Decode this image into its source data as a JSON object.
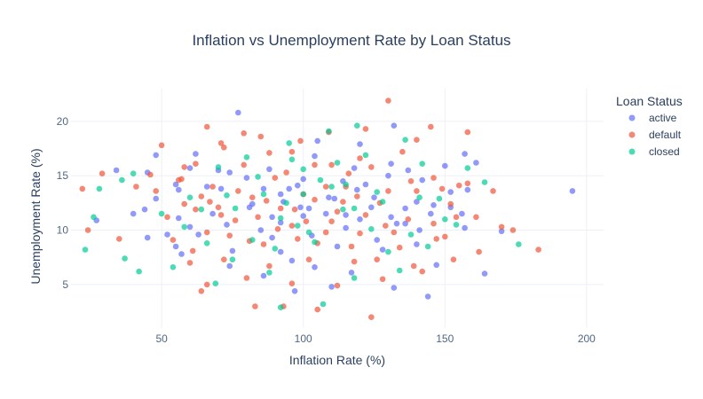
{
  "chart_data": {
    "type": "scatter",
    "title": "Inflation vs Unemployment Rate by Loan Status",
    "xlabel": "Inflation Rate (%)",
    "ylabel": "Unemployment Rate (%)",
    "xlim": [
      18,
      206
    ],
    "ylim": [
      1,
      23
    ],
    "x_ticks": [
      50,
      100,
      150,
      200
    ],
    "y_ticks": [
      5,
      10,
      15,
      20
    ],
    "grid": true,
    "legend": {
      "title": "Loan Status",
      "position": "top-right"
    },
    "series": [
      {
        "name": "active",
        "color": "#636efa",
        "points": [
          [
            77,
            20.8
          ],
          [
            34,
            15.5
          ],
          [
            48,
            16.9
          ],
          [
            45,
            15.3
          ],
          [
            60,
            15.7
          ],
          [
            70,
            15.5
          ],
          [
            92,
            13.3
          ],
          [
            74,
            15.3
          ],
          [
            150,
            15.9
          ],
          [
            157,
            17.0
          ],
          [
            195,
            13.6
          ],
          [
            157,
            10.2
          ],
          [
            132,
            4.7
          ],
          [
            144,
            3.9
          ],
          [
            164,
            6.0
          ],
          [
            170,
            9.9
          ],
          [
            97,
            4.4
          ],
          [
            110,
            4.8
          ],
          [
            40,
            11.5
          ],
          [
            60,
            10.3
          ],
          [
            45,
            9.3
          ],
          [
            55,
            8.5
          ],
          [
            92,
            8.0
          ],
          [
            126,
            9.1
          ],
          [
            120,
            11.0
          ],
          [
            136,
            12.0
          ],
          [
            130,
            15.0
          ],
          [
            152,
            13.5
          ],
          [
            145,
            11.5
          ],
          [
            120,
            17.9
          ],
          [
            86,
            13.8
          ],
          [
            104,
            16.8
          ],
          [
            109,
            13.0
          ],
          [
            132,
            19.6
          ],
          [
            100,
            11.3
          ],
          [
            66,
            14.0
          ],
          [
            56,
            11.1
          ],
          [
            85,
            10.0
          ],
          [
            115,
            10.2
          ],
          [
            74,
            6.7
          ],
          [
            96,
            7.2
          ],
          [
            112,
            8.5
          ],
          [
            128,
            8.2
          ],
          [
            140,
            8.7
          ],
          [
            48,
            12.9
          ],
          [
            81,
            12.1
          ],
          [
            62,
            17.0
          ],
          [
            114,
            14.5
          ],
          [
            92,
            10.7
          ],
          [
            73,
            10.5
          ],
          [
            56,
            13.7
          ],
          [
            122,
            14.2
          ],
          [
            140,
            12.6
          ],
          [
            103,
            9.5
          ],
          [
            152,
            12.1
          ],
          [
            117,
            6.1
          ],
          [
            147,
            6.8
          ],
          [
            86,
            5.8
          ],
          [
            82,
            12.4
          ],
          [
            142,
            14.6
          ],
          [
            68,
            11.5
          ],
          [
            55,
            14.2
          ],
          [
            108,
            11.5
          ],
          [
            136,
            10.6
          ],
          [
            98,
            14.1
          ],
          [
            63,
            9.6
          ],
          [
            75,
            8.1
          ],
          [
            104,
            6.6
          ],
          [
            88,
            15.6
          ],
          [
            118,
            15.7
          ],
          [
            131,
            11.2
          ],
          [
            156,
            11.5
          ],
          [
            93,
            12.6
          ],
          [
            52,
            9.6
          ],
          [
            44,
            11.9
          ],
          [
            161,
            16.2
          ],
          [
            27,
            10.9
          ],
          [
            105,
            18.2
          ],
          [
            71,
            13.8
          ],
          [
            125,
            13.0
          ],
          [
            131,
            16.1
          ],
          [
            111,
            12.9
          ],
          [
            158,
            13.7
          ],
          [
            99,
            12.1
          ],
          [
            89,
            9.3
          ],
          [
            124,
            12.1
          ],
          [
            95,
            13.8
          ],
          [
            80,
            14.8
          ],
          [
            137,
            15.5
          ],
          [
            141,
            10.0
          ],
          [
            89,
            11.2
          ],
          [
            57,
            7.8
          ],
          [
            100,
            14.7
          ],
          [
            146,
            12.3
          ],
          [
            102,
            12.0
          ],
          [
            119,
            13.7
          ],
          [
            115,
            11.4
          ],
          [
            133,
            10.6
          ]
        ]
      },
      {
        "name": "default",
        "color": "#ef553b",
        "points": [
          [
            130,
            21.9
          ],
          [
            46,
            15.1
          ],
          [
            50,
            17.8
          ],
          [
            66,
            19.5
          ],
          [
            79,
            18.9
          ],
          [
            83,
            3.0
          ],
          [
            124,
            2.0
          ],
          [
            64,
            4.4
          ],
          [
            183,
            8.2
          ],
          [
            167,
            13.6
          ],
          [
            161,
            11.2
          ],
          [
            145,
            19.5
          ],
          [
            158,
            19.0
          ],
          [
            170,
            10.3
          ],
          [
            22,
            13.8
          ],
          [
            24,
            10.0
          ],
          [
            35,
            9.2
          ],
          [
            29,
            15.2
          ],
          [
            41,
            14.0
          ],
          [
            56,
            14.6
          ],
          [
            62,
            16.1
          ],
          [
            72,
            17.6
          ],
          [
            88,
            17.1
          ],
          [
            104,
            16.0
          ],
          [
            120,
            16.6
          ],
          [
            135,
            17.2
          ],
          [
            146,
            14.8
          ],
          [
            140,
            13.6
          ],
          [
            152,
            12.4
          ],
          [
            158,
            14.3
          ],
          [
            150,
            9.4
          ],
          [
            132,
            9.8
          ],
          [
            122,
            11.4
          ],
          [
            110,
            10.8
          ],
          [
            96,
            10.4
          ],
          [
            84,
            11.2
          ],
          [
            70,
            12.1
          ],
          [
            58,
            12.4
          ],
          [
            66,
            9.8
          ],
          [
            72,
            7.3
          ],
          [
            60,
            7.0
          ],
          [
            80,
            5.6
          ],
          [
            96,
            5.1
          ],
          [
            112,
            4.9
          ],
          [
            128,
            5.5
          ],
          [
            142,
            6.2
          ],
          [
            100,
            13.3
          ],
          [
            90,
            14.8
          ],
          [
            114,
            12.6
          ],
          [
            105,
            8.8
          ],
          [
            118,
            7.1
          ],
          [
            134,
            8.4
          ],
          [
            86,
            8.7
          ],
          [
            76,
            10.9
          ],
          [
            64,
            13.1
          ],
          [
            52,
            11.2
          ],
          [
            48,
            13.6
          ],
          [
            58,
            15.8
          ],
          [
            68,
            14.0
          ],
          [
            92,
            12.0
          ],
          [
            108,
            14.0
          ],
          [
            124,
            15.8
          ],
          [
            138,
            14.5
          ],
          [
            154,
            11.2
          ],
          [
            162,
            8.0
          ],
          [
            174,
            10.0
          ],
          [
            98,
            9.2
          ],
          [
            112,
            11.7
          ],
          [
            120,
            9.7
          ],
          [
            104,
            12.8
          ],
          [
            94,
            15.3
          ],
          [
            82,
            13.0
          ],
          [
            74,
            9.5
          ],
          [
            62,
            11.9
          ],
          [
            54,
            9.1
          ],
          [
            88,
            6.7
          ],
          [
            102,
            7.3
          ],
          [
            126,
            7.3
          ],
          [
            116,
            15.2
          ],
          [
            130,
            13.6
          ],
          [
            146,
            10.6
          ],
          [
            79,
            16.0
          ],
          [
            71,
            18.0
          ],
          [
            85,
            18.6
          ],
          [
            99,
            18.2
          ],
          [
            109,
            19.0
          ],
          [
            122,
            19.3
          ],
          [
            140,
            18.3
          ],
          [
            93,
            3.0
          ],
          [
            105,
            2.7
          ],
          [
            115,
            14.0
          ],
          [
            108,
            9.8
          ],
          [
            97,
            11.9
          ],
          [
            87,
            12.7
          ],
          [
            77,
            13.6
          ],
          [
            67,
            12.6
          ],
          [
            57,
            14.7
          ],
          [
            127,
            12.5
          ],
          [
            137,
            11.0
          ],
          [
            147,
            9.2
          ],
          [
            139,
            6.7
          ],
          [
            117,
            8.5
          ],
          [
            101,
            10.8
          ],
          [
            91,
            10.1
          ],
          [
            81,
            9.0
          ],
          [
            71,
            11.4
          ],
          [
            61,
            8.1
          ],
          [
            119,
            13.1
          ],
          [
            129,
            10.4
          ],
          [
            149,
            13.8
          ],
          [
            110,
            16.0
          ],
          [
            96,
            17.2
          ],
          [
            66,
            5.0
          ],
          [
            153,
            7.3
          ],
          [
            155,
            14.1
          ]
        ]
      },
      {
        "name": "closed",
        "color": "#00cc96",
        "points": [
          [
            92,
            2.9
          ],
          [
            107,
            3.2
          ],
          [
            23,
            8.2
          ],
          [
            26,
            11.2
          ],
          [
            28,
            13.8
          ],
          [
            37,
            7.4
          ],
          [
            42,
            6.2
          ],
          [
            36,
            14.6
          ],
          [
            40,
            15.2
          ],
          [
            50,
            11.5
          ],
          [
            54,
            6.6
          ],
          [
            58,
            10.3
          ],
          [
            64,
            11.9
          ],
          [
            70,
            15.8
          ],
          [
            76,
            12.0
          ],
          [
            82,
            9.1
          ],
          [
            88,
            6.1
          ],
          [
            94,
            12.5
          ],
          [
            100,
            13.3
          ],
          [
            106,
            14.6
          ],
          [
            112,
            16.2
          ],
          [
            118,
            12.0
          ],
          [
            124,
            10.1
          ],
          [
            130,
            8.0
          ],
          [
            136,
            18.3
          ],
          [
            142,
            16.1
          ],
          [
            148,
            12.9
          ],
          [
            154,
            10.5
          ],
          [
            158,
            15.7
          ],
          [
            164,
            14.4
          ],
          [
            176,
            8.7
          ],
          [
            109,
            19.1
          ],
          [
            95,
            18.0
          ],
          [
            119,
            19.6
          ],
          [
            75,
            7.3
          ],
          [
            69,
            5.1
          ],
          [
            60,
            13.0
          ],
          [
            84,
            14.9
          ],
          [
            98,
            10.4
          ],
          [
            104,
            8.9
          ],
          [
            114,
            11.9
          ],
          [
            126,
            13.5
          ],
          [
            138,
            9.6
          ],
          [
            144,
            8.5
          ],
          [
            150,
            11.0
          ],
          [
            96,
            16.5
          ],
          [
            110,
            14.0
          ],
          [
            92,
            11.1
          ],
          [
            80,
            16.7
          ],
          [
            66,
            8.8
          ],
          [
            118,
            5.6
          ],
          [
            134,
            6.3
          ],
          [
            86,
            13.3
          ],
          [
            100,
            15.6
          ],
          [
            122,
            16.9
          ],
          [
            102,
            9.8
          ],
          [
            90,
            8.3
          ],
          [
            73,
            13.2
          ],
          [
            115,
            14.2
          ],
          [
            128,
            12.6
          ],
          [
            141,
            13.0
          ]
        ]
      }
    ]
  }
}
